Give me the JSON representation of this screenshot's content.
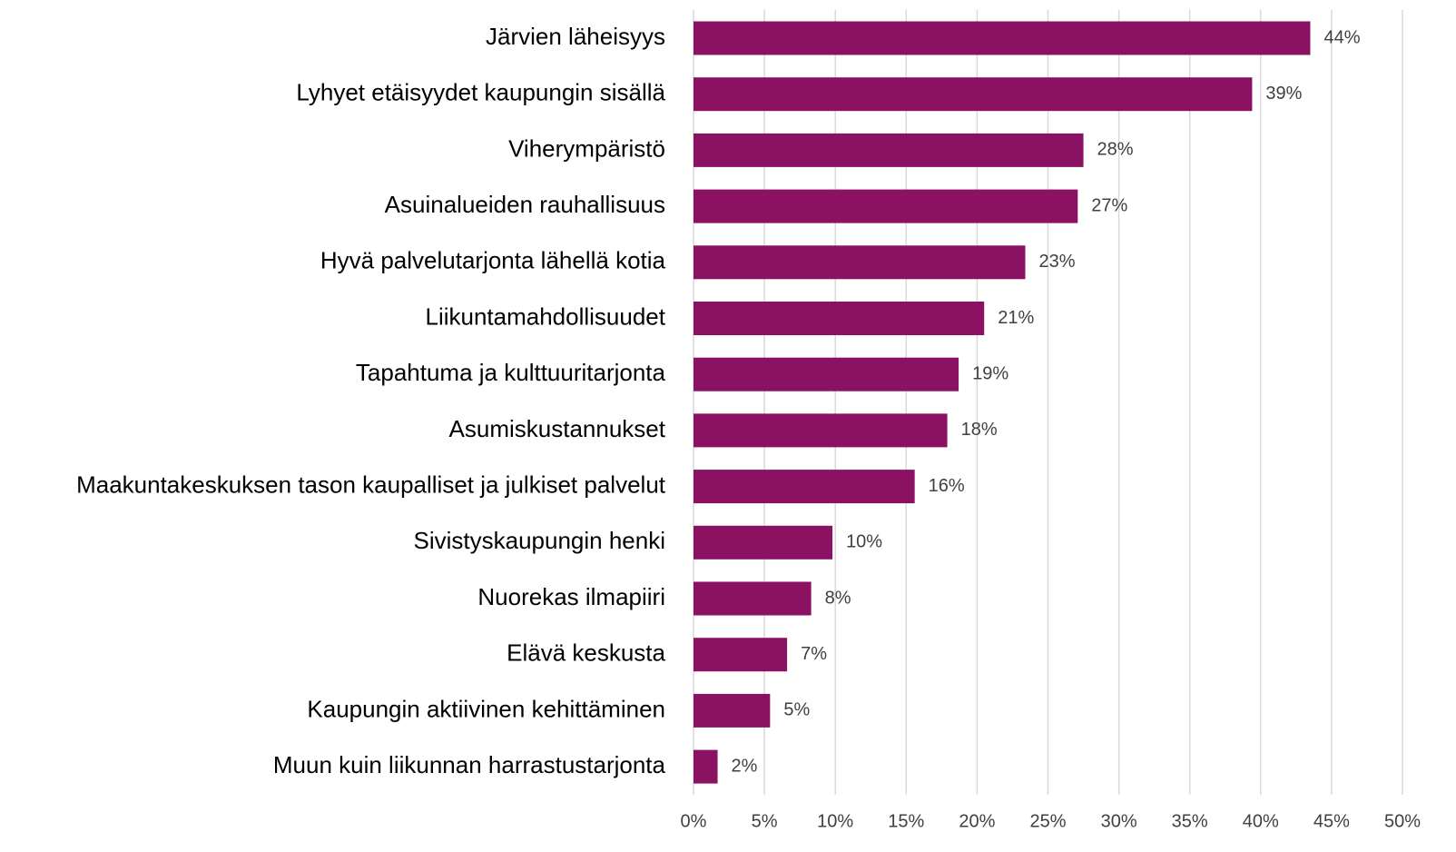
{
  "chart_data": {
    "type": "barh",
    "categories": [
      "Järvien läheisyys",
      "Lyhyet etäisyydet kaupungin sisällä",
      "Viherympäristö",
      "Asuinalueiden rauhallisuus",
      "Hyvä palvelutarjonta lähellä kotia",
      "Liikuntamahdollisuudet",
      "Tapahtuma ja kulttuuritarjonta",
      "Asumiskustannukset",
      "Maakuntakeskuksen tason kaupalliset ja julkiset palvelut",
      "Sivistyskaupungin henki",
      "Nuorekas ilmapiiri",
      "Elävä keskusta",
      "Kaupungin aktiivinen kehittäminen",
      "Muun kuin liikunnan harrastustarjonta"
    ],
    "values": [
      43.5,
      39.4,
      27.5,
      27.1,
      23.4,
      20.5,
      18.7,
      17.9,
      15.6,
      9.8,
      8.3,
      6.6,
      5.4,
      1.7
    ],
    "value_labels": [
      "44%",
      "39%",
      "28%",
      "27%",
      "23%",
      "21%",
      "19%",
      "18%",
      "16%",
      "10%",
      "8%",
      "7%",
      "5%",
      "2%"
    ],
    "color": "#8b1262",
    "xlim": [
      0,
      50
    ],
    "xticks": [
      {
        "value": 0,
        "label": "0%"
      },
      {
        "value": 5,
        "label": "5%"
      },
      {
        "value": 10,
        "label": "10%"
      },
      {
        "value": 15,
        "label": "15%"
      },
      {
        "value": 20,
        "label": "20%"
      },
      {
        "value": 25,
        "label": "25%"
      },
      {
        "value": 30,
        "label": "30%"
      },
      {
        "value": 35,
        "label": "35%"
      },
      {
        "value": 40,
        "label": "40%"
      },
      {
        "value": 45,
        "label": "45%"
      },
      {
        "value": 50,
        "label": "50%"
      }
    ],
    "grid": true
  }
}
